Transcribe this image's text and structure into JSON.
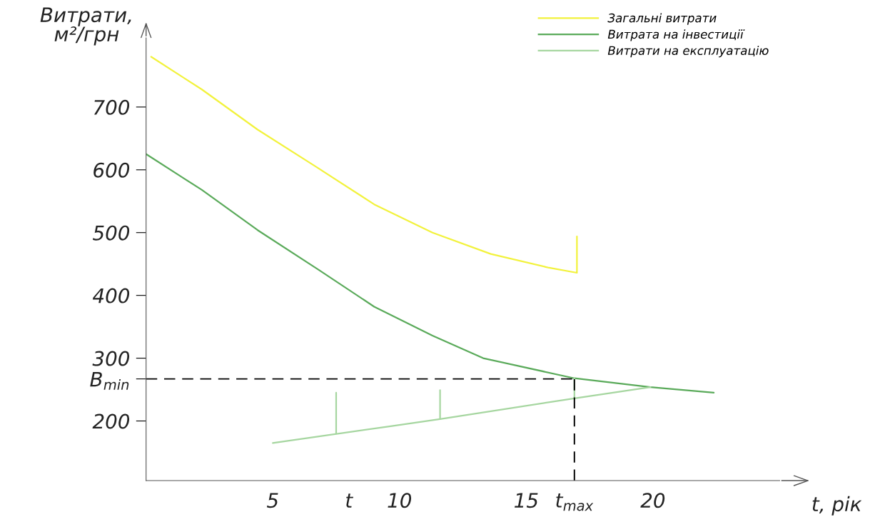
{
  "chart_data": {
    "type": "line",
    "xlabel": "t, рік",
    "ylabel": "Витрати,\nм²/грн",
    "xlim": [
      0,
      25
    ],
    "ylim": [
      105,
      810
    ],
    "xticks": [
      5,
      {
        "value": 8.0,
        "label": "t"
      },
      10,
      15,
      {
        "value": 16.9,
        "label": "t$_{max}$"
      },
      20
    ],
    "yticks": [
      {
        "value": 267,
        "label": "B$_{min}$"
      },
      200,
      300,
      400,
      500,
      600,
      700
    ],
    "legend": "top right",
    "grid": false,
    "marker": "none",
    "line_style": "solid",
    "ref_lines": [
      {
        "axis": "y",
        "value": 267,
        "color": "#000000",
        "line_style": "dashed"
      },
      {
        "axis": "x",
        "value": 16.9,
        "color": "#000000",
        "line_style": "dashed"
      }
    ],
    "series": [
      {
        "name": "Загальні витрати",
        "color": "#f2f23c",
        "x": [
          0.2,
          2.2,
          4.4,
          6.7,
          9.0,
          11.3,
          13.6,
          15.9,
          17.0,
          17.0
        ],
        "values": [
          780,
          728,
          664,
          605,
          545,
          500,
          466,
          444,
          436,
          494
        ]
      },
      {
        "name": "Витрата на інвестиції",
        "color": "#5aaa5a",
        "x": [
          0,
          2.2,
          4.4,
          6.8,
          9.0,
          11.3,
          13.3,
          16.9,
          19.9,
          22.4
        ],
        "values": [
          625,
          568,
          504,
          441,
          382,
          336,
          300,
          268,
          254,
          245
        ]
      },
      {
        "name": "Витрати на експлуатацію",
        "color": "#a6d6a0",
        "x": [
          5,
          9.7,
          11.6,
          16.9,
          19.9
        ],
        "values": [
          165,
          192,
          203,
          236,
          254
        ]
      },
      {
        "color": "#a6d6a0",
        "x": [
          7.5,
          7.5
        ],
        "values": [
          180,
          245
        ]
      },
      {
        "color": "#a6d6a0",
        "x": [
          11.6,
          11.6
        ],
        "values": [
          203,
          249
        ]
      },
      {
        "color": "#a6d6a0",
        "x": [
          16.9,
          16.9
        ],
        "values": [
          236,
          268
        ]
      }
    ]
  }
}
